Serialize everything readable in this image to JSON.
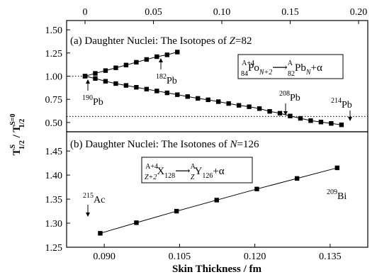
{
  "chart_data": [
    {
      "type": "line",
      "panel": "a",
      "title": "(a) Daughter Nuclei: The Isotopes of ",
      "title_var": "Z",
      "title_val": "=82",
      "x_top_ticks": [
        "0",
        "0.05",
        "0.10",
        "0.15",
        "0.20"
      ],
      "xlim": [
        0,
        0.2
      ],
      "y_ticks": [
        "0.50",
        "0.75",
        "1.00",
        "1.25",
        "1.50"
      ],
      "ylim": [
        0.4,
        1.6
      ],
      "series": [
        {
          "x": [
            0,
            0.0075,
            0.015,
            0.0225,
            0.03,
            0.0375,
            0.045,
            0.0525,
            0.06,
            0.0675
          ],
          "y": [
            1.0,
            1.03,
            1.06,
            1.09,
            1.12,
            1.15,
            1.18,
            1.21,
            1.23,
            1.26
          ]
        },
        {
          "x": [
            0,
            0.0075,
            0.015,
            0.0225,
            0.03,
            0.0375,
            0.045,
            0.0525,
            0.06,
            0.0675,
            0.075,
            0.0825,
            0.09,
            0.0975,
            0.105,
            0.1125,
            0.12,
            0.1275,
            0.135,
            0.1425,
            0.15,
            0.1575,
            0.165,
            0.1725,
            0.18,
            0.1875
          ],
          "y": [
            1.0,
            0.975,
            0.945,
            0.92,
            0.9,
            0.88,
            0.86,
            0.84,
            0.82,
            0.8,
            0.78,
            0.76,
            0.745,
            0.725,
            0.705,
            0.685,
            0.67,
            0.65,
            0.62,
            0.6,
            0.57,
            0.545,
            0.52,
            0.505,
            0.49,
            0.475
          ]
        }
      ],
      "hlines": [
        1.0,
        0.565
      ],
      "labels": [
        {
          "sup": "190",
          "text": "Pb"
        },
        {
          "sup": "182",
          "text": "Pb"
        },
        {
          "sup": "208",
          "text": "Pb"
        },
        {
          "sup": "214",
          "text": "Pb"
        }
      ],
      "equation": {
        "parent_sup": "A+4",
        "parent_sub": "84",
        "parent": "Po",
        "parent_n": "N+2",
        "daughter_sup": "A",
        "daughter_sub": "82",
        "daughter": "Pb",
        "daughter_n": "N",
        "product": "+α"
      }
    },
    {
      "type": "line",
      "panel": "b",
      "title": "(b) Daughter Nuclei: The Isotones of ",
      "title_var": "N",
      "title_val": "=126",
      "x_ticks": [
        "0.090",
        "0.105",
        "0.120",
        "0.135"
      ],
      "xlim": [
        0.0825,
        0.1425
      ],
      "y_ticks": [
        "1.25",
        "1.30",
        "1.35",
        "1.40",
        "1.45"
      ],
      "ylim": [
        1.25,
        1.49
      ],
      "series": [
        {
          "x": [
            0.0892,
            0.0964,
            0.1044,
            0.1124,
            0.1204,
            0.1284,
            0.1364
          ],
          "y": [
            1.279,
            1.301,
            1.325,
            1.348,
            1.371,
            1.393,
            1.415
          ]
        }
      ],
      "labels": [
        {
          "sup": "215",
          "text": "Ac"
        },
        {
          "sup": "209",
          "text": "Bi"
        }
      ],
      "equation": {
        "parent_sup": "A+4",
        "parent_sub": "Z+2",
        "parent": "X",
        "parent_n": "128",
        "daughter_sup": "A",
        "daughter_sub": "Z",
        "daughter": "Y",
        "daughter_n": "126",
        "product": "+α"
      }
    }
  ],
  "ylabel": {
    "T1": "T",
    "sup1": "S",
    "sub1": "1/2",
    "slash": " / T",
    "sup2": "S=0",
    "sub2": "1/2"
  },
  "xlabel": "Skin Thickness / fm",
  "arrow": "⟶"
}
